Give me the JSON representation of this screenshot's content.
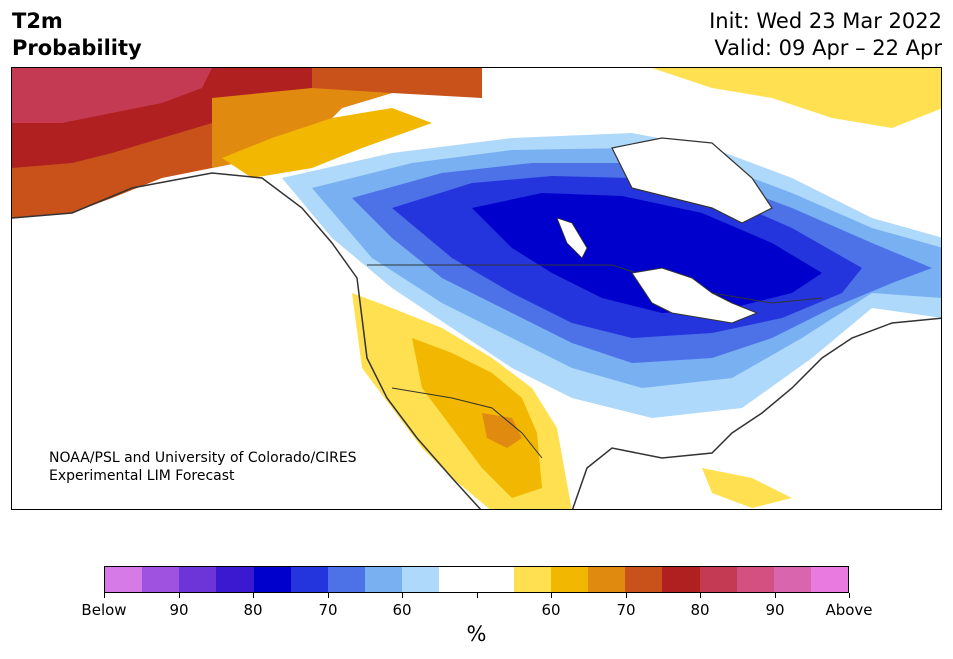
{
  "header": {
    "title_line1": "T2m",
    "title_line2": "Probability",
    "init": "Init: Wed 23 Mar 2022",
    "valid": "Valid: 09 Apr – 22 Apr"
  },
  "map": {
    "credit_line1": "NOAA/PSL and University of Colorado/CIRES",
    "credit_line2": "Experimental LIM Forecast"
  },
  "colorbar": {
    "colors": [
      "#d67ae8",
      "#9f52e0",
      "#6d35d8",
      "#3a19d0",
      "#0000cc",
      "#2535dd",
      "#4d72e8",
      "#78b0f2",
      "#aed9fa",
      "#ffffff",
      "#ffffff",
      "#ffe050",
      "#f2b700",
      "#e08a10",
      "#c8521a",
      "#b02020",
      "#c43a52",
      "#d45080",
      "#d865ae",
      "#e87ae0"
    ],
    "tick_labels": [
      "Below",
      "90",
      "80",
      "70",
      "60",
      "",
      "60",
      "70",
      "80",
      "90",
      "Above"
    ],
    "unit": "%"
  }
}
